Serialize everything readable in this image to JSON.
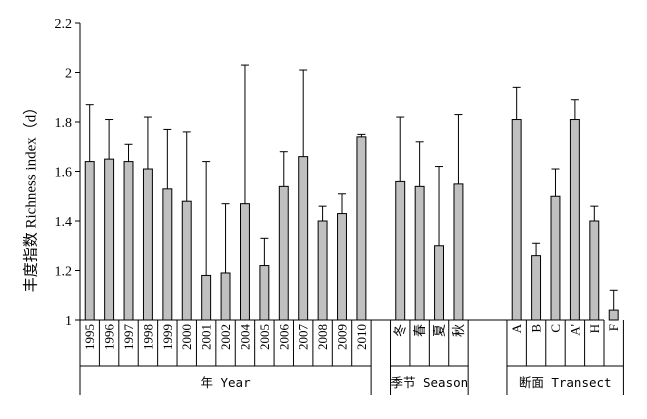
{
  "chart_data": {
    "type": "bar",
    "ylabel": "丰度指数 Richness index（d）",
    "ylim": [
      1,
      2.2
    ],
    "yticks": [
      "1",
      "1.2",
      "1.4",
      "1.6",
      "1.8",
      "2",
      "2.2"
    ],
    "grid": false,
    "bar_color": "#c0c0c0",
    "groups": [
      {
        "label": "年 Year",
        "categories": [
          "1995",
          "1996",
          "1997",
          "1998",
          "1999",
          "2000",
          "2001",
          "2002",
          "2004",
          "2005",
          "2006",
          "2007",
          "2008",
          "2009",
          "2010"
        ],
        "values": [
          1.64,
          1.65,
          1.64,
          1.61,
          1.53,
          1.48,
          1.18,
          1.19,
          1.47,
          1.22,
          1.54,
          1.66,
          1.4,
          1.43,
          1.74
        ],
        "upper": [
          1.87,
          1.81,
          1.71,
          1.82,
          1.77,
          1.76,
          1.64,
          1.47,
          2.03,
          1.33,
          1.68,
          2.01,
          1.46,
          1.51,
          1.75
        ]
      },
      {
        "label": "季节 Season",
        "categories": [
          "冬",
          "春",
          "夏",
          "秋"
        ],
        "values": [
          1.56,
          1.54,
          1.3,
          1.55
        ],
        "upper": [
          1.82,
          1.72,
          1.62,
          1.83
        ]
      },
      {
        "label": "断面 Transect",
        "categories": [
          "A",
          "B",
          "C",
          "A'",
          "H",
          "F"
        ],
        "values": [
          1.81,
          1.26,
          1.5,
          1.81,
          1.4,
          1.04
        ],
        "upper": [
          1.94,
          1.31,
          1.61,
          1.89,
          1.46,
          1.12
        ]
      }
    ]
  }
}
